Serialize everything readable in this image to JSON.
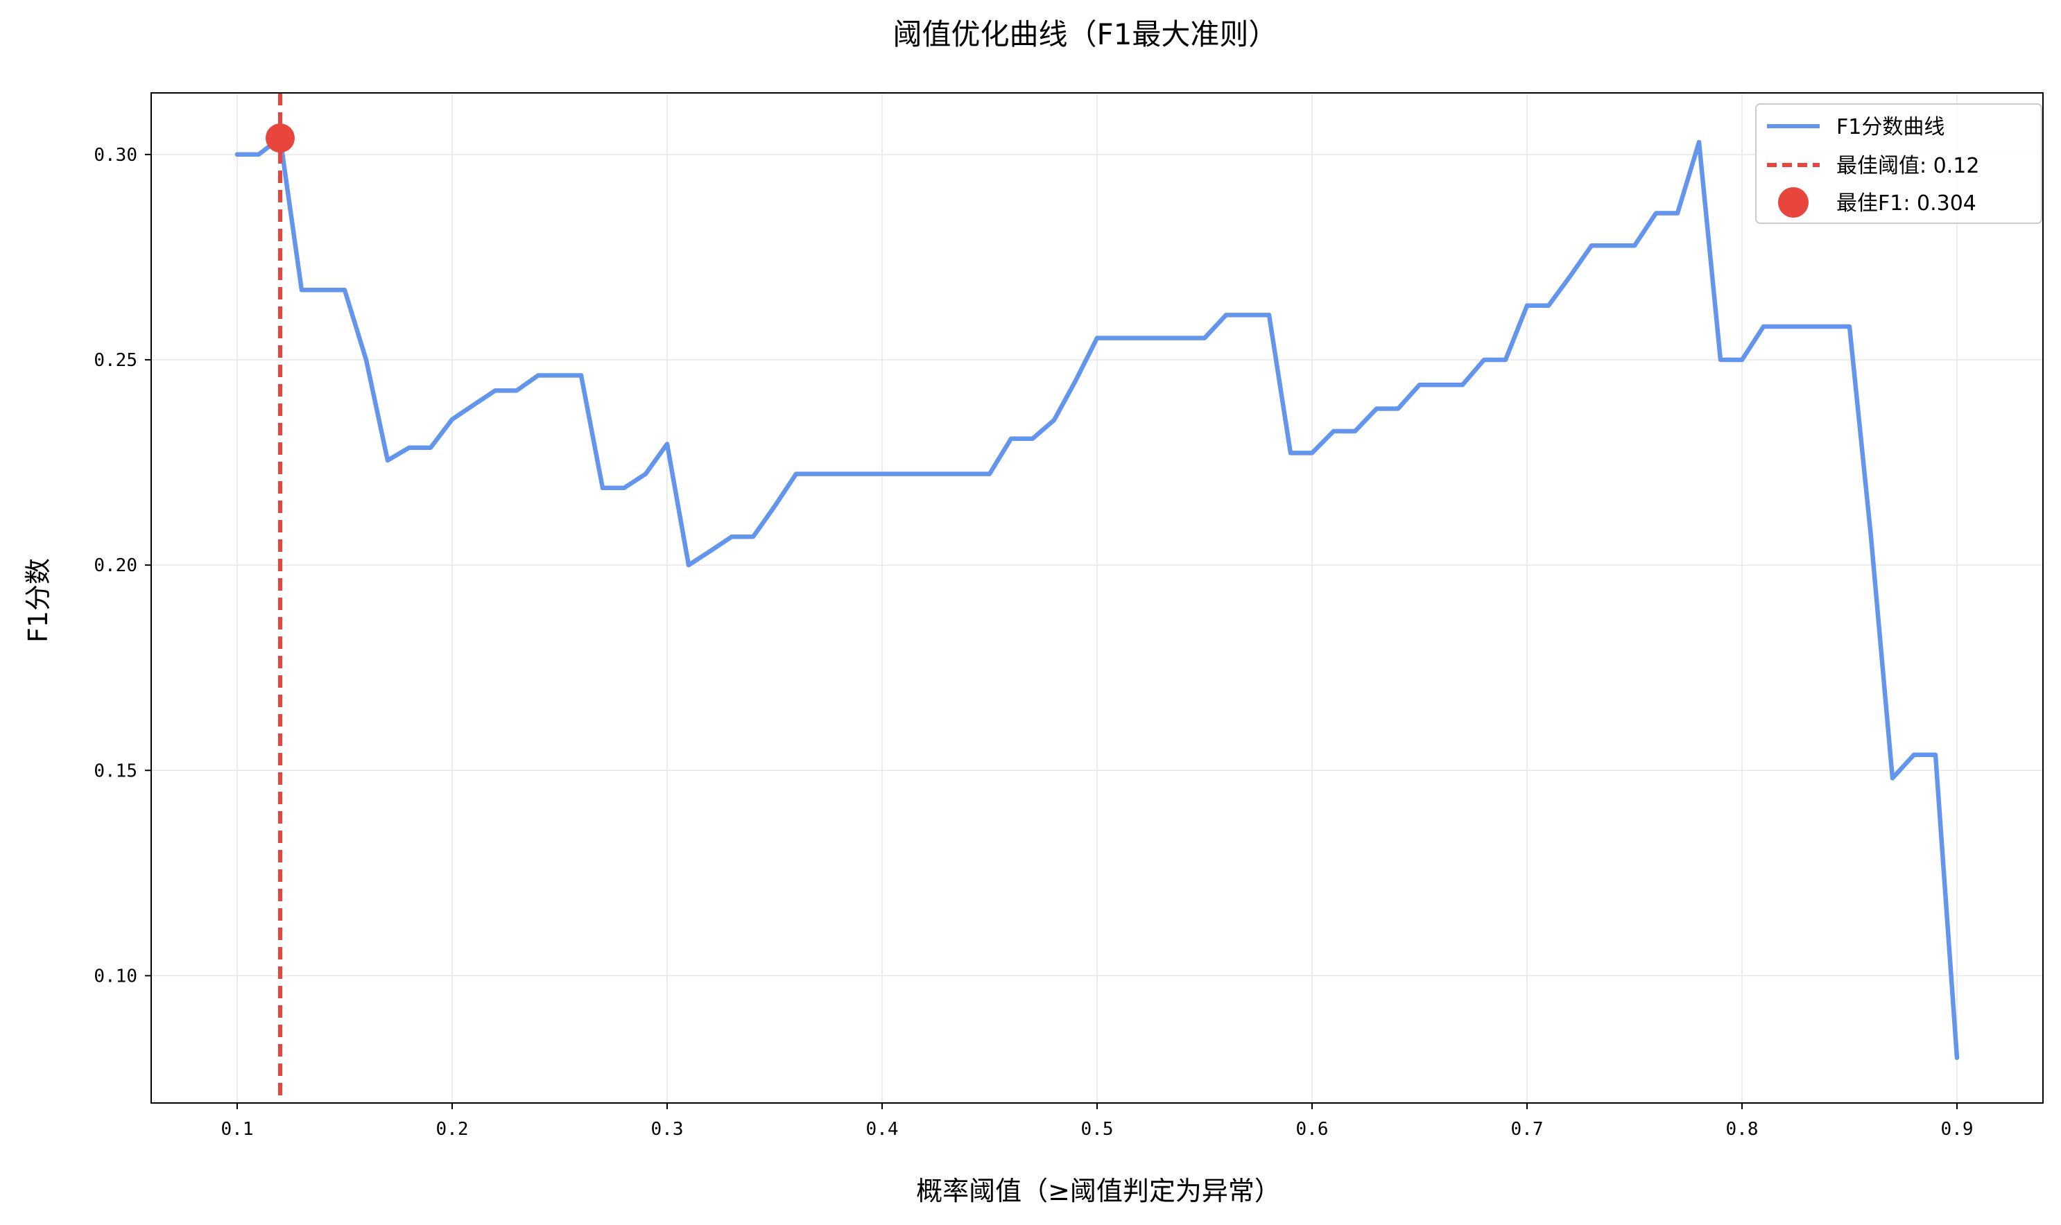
{
  "chart_data": {
    "type": "line",
    "title": "阈值优化曲线（F1最大准则）",
    "xlabel": "概率阈值（≥阈值判定为异常）",
    "ylabel": "F1分数",
    "xlim": [
      0.06,
      0.94
    ],
    "ylim": [
      0.069,
      0.315
    ],
    "x_ticks": [
      0.1,
      0.2,
      0.3,
      0.4,
      0.5,
      0.6,
      0.7,
      0.8,
      0.9
    ],
    "x_tick_labels": [
      "0.1",
      "0.2",
      "0.3",
      "0.4",
      "0.5",
      "0.6",
      "0.7",
      "0.8",
      "0.9"
    ],
    "y_ticks": [
      0.1,
      0.15,
      0.2,
      0.25,
      0.3
    ],
    "y_tick_labels": [
      "0.10",
      "0.15",
      "0.20",
      "0.25",
      "0.30"
    ],
    "grid": true,
    "legend_position": "top-right",
    "series": [
      {
        "name": "F1分数曲线",
        "color": "#6495ED",
        "x": [
          0.1,
          0.11,
          0.12,
          0.13,
          0.14,
          0.15,
          0.16,
          0.17,
          0.18,
          0.19,
          0.2,
          0.21,
          0.22,
          0.23,
          0.24,
          0.25,
          0.26,
          0.27,
          0.28,
          0.29,
          0.3,
          0.31,
          0.32,
          0.33,
          0.34,
          0.35,
          0.36,
          0.37,
          0.38,
          0.39,
          0.4,
          0.41,
          0.42,
          0.43,
          0.44,
          0.45,
          0.46,
          0.47,
          0.48,
          0.49,
          0.5,
          0.51,
          0.52,
          0.53,
          0.54,
          0.55,
          0.56,
          0.57,
          0.58,
          0.59,
          0.6,
          0.61,
          0.62,
          0.63,
          0.64,
          0.65,
          0.66,
          0.67,
          0.68,
          0.69,
          0.7,
          0.71,
          0.72,
          0.73,
          0.74,
          0.75,
          0.76,
          0.77,
          0.78,
          0.79,
          0.8,
          0.81,
          0.82,
          0.83,
          0.84,
          0.85,
          0.86,
          0.87,
          0.88,
          0.89,
          0.9
        ],
        "y": [
          0.3,
          0.3,
          0.304,
          0.267,
          0.267,
          0.267,
          0.25,
          0.2255,
          0.2286,
          0.2286,
          0.2355,
          0.239,
          0.2425,
          0.2425,
          0.2462,
          0.2462,
          0.2462,
          0.2188,
          0.2188,
          0.2222,
          0.2295,
          0.2,
          0.2034,
          0.2069,
          0.2069,
          0.2143,
          0.2222,
          0.2222,
          0.2222,
          0.2222,
          0.2222,
          0.2222,
          0.2222,
          0.2222,
          0.2222,
          0.2222,
          0.2308,
          0.2308,
          0.2353,
          0.2449,
          0.2553,
          0.2553,
          0.2553,
          0.2553,
          0.2553,
          0.2553,
          0.2609,
          0.2609,
          0.2609,
          0.2273,
          0.2273,
          0.2326,
          0.2326,
          0.2381,
          0.2381,
          0.2439,
          0.2439,
          0.2439,
          0.25,
          0.25,
          0.2632,
          0.2632,
          0.2703,
          0.2778,
          0.2778,
          0.2778,
          0.2857,
          0.2857,
          0.303,
          0.25,
          0.25,
          0.2581,
          0.2581,
          0.2581,
          0.2581,
          0.2581,
          0.2069,
          0.1481,
          0.1538,
          0.1538,
          0.08
        ]
      },
      {
        "name": "最佳阈值: 0.12",
        "color": "#E8453C",
        "style": "dashed-vertical",
        "x": 0.12
      },
      {
        "name": "最佳F1: 0.304",
        "color": "#E8453C",
        "style": "marker",
        "x": 0.12,
        "y": 0.304
      }
    ]
  }
}
